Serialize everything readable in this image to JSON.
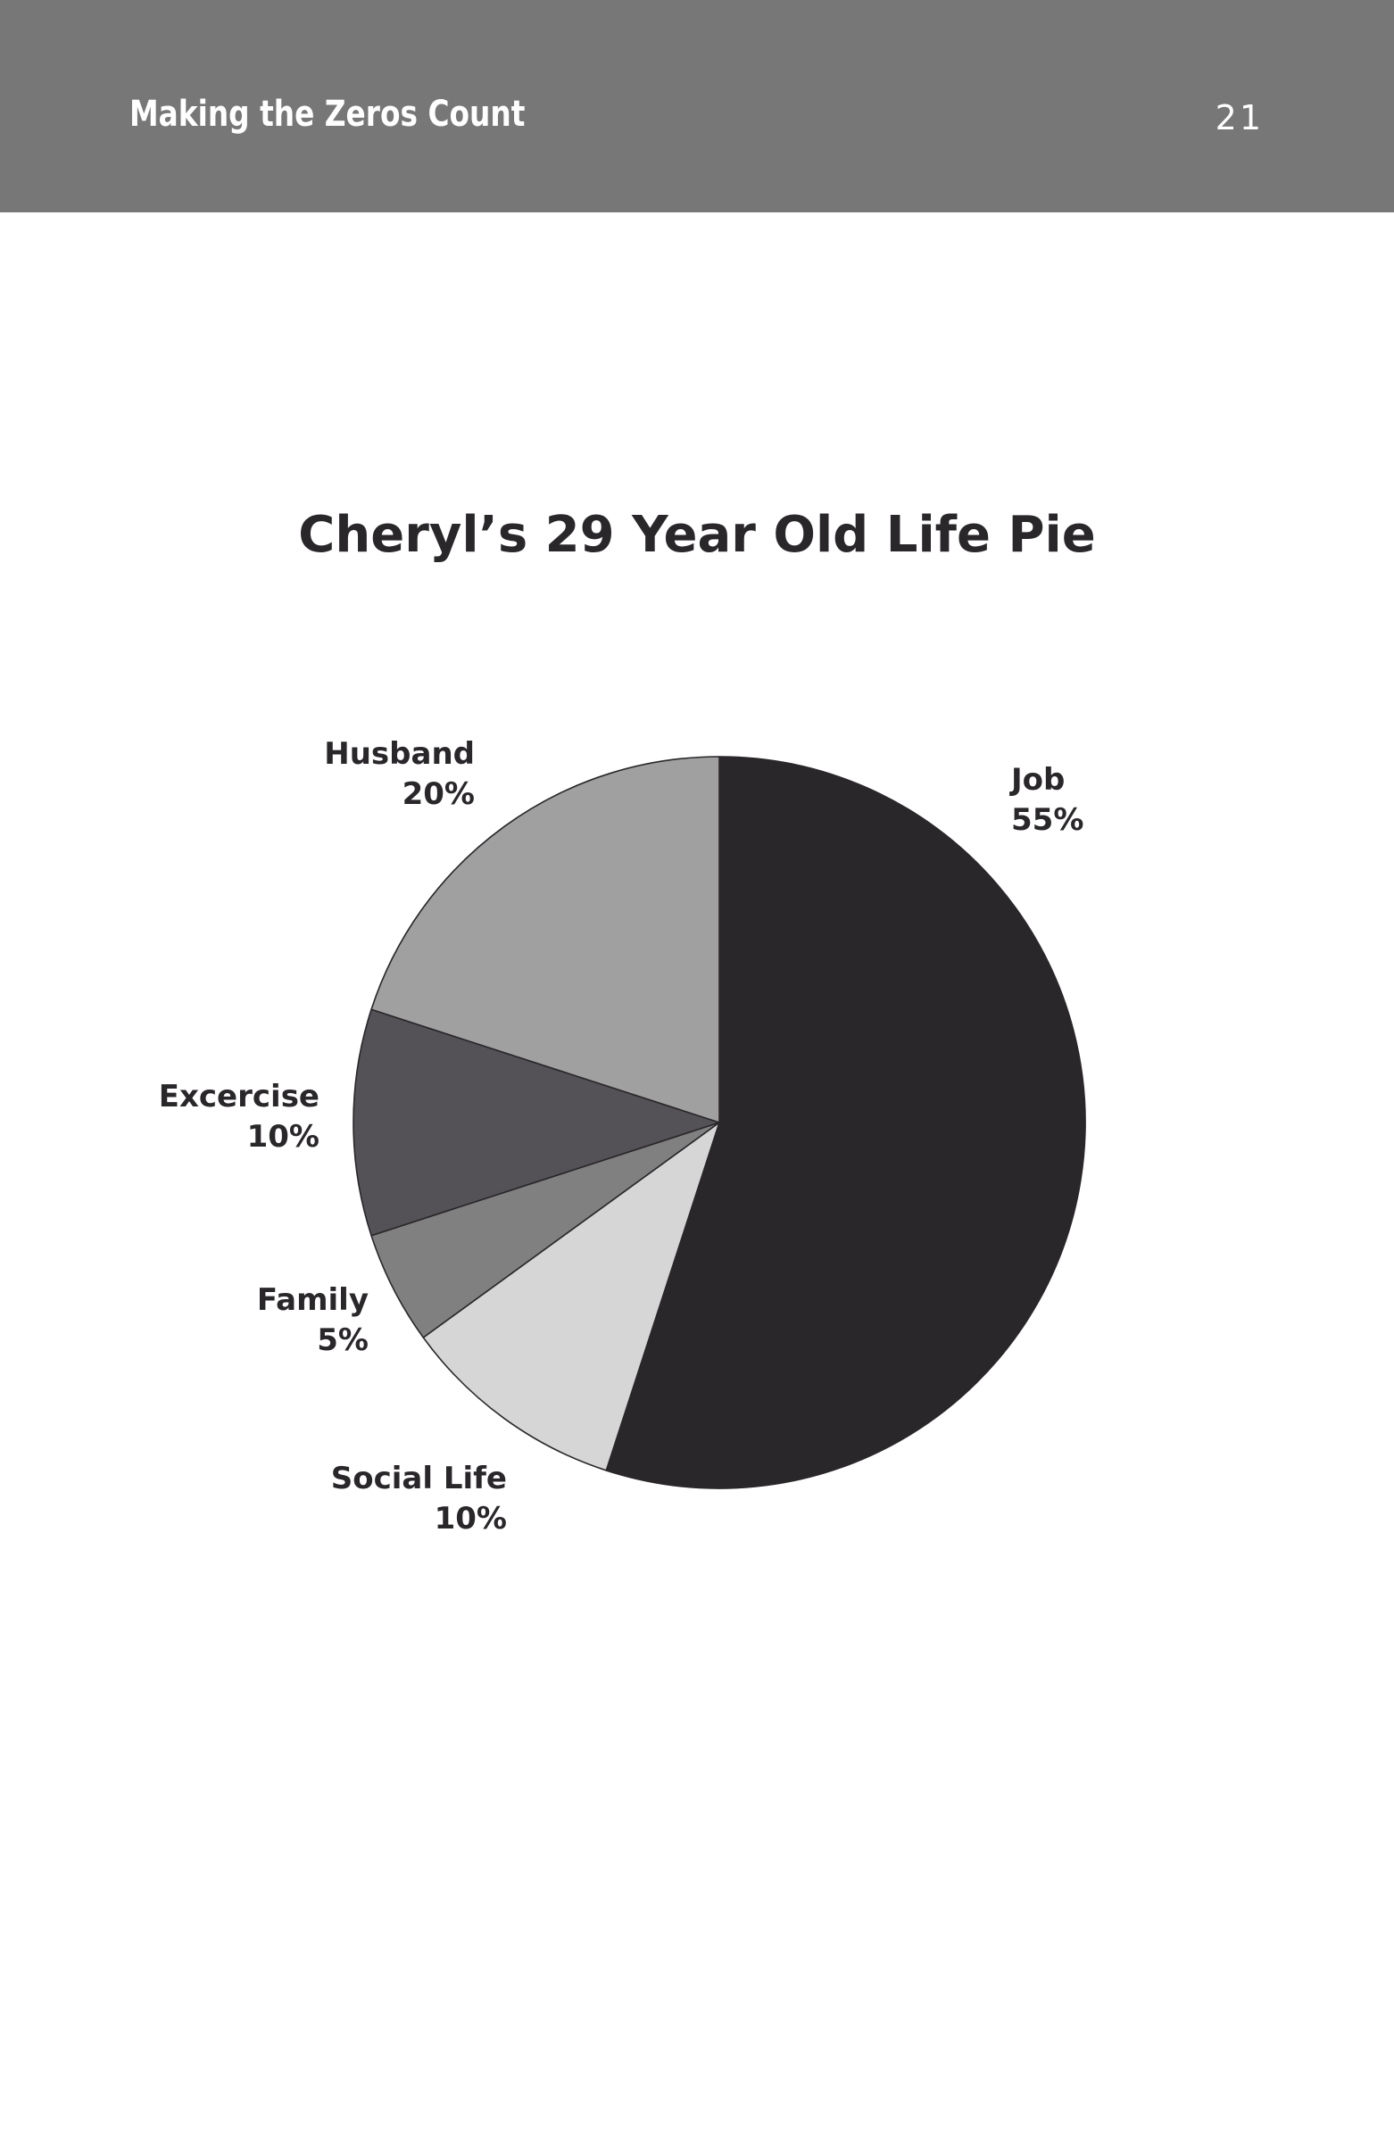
{
  "header": {
    "running_head": "Making the Zeros Count",
    "page_number": "21"
  },
  "chart_data": {
    "type": "pie",
    "title": "Cheryl’s 29 Year Old Life Pie",
    "unit": "%",
    "slices": [
      {
        "name": "Job",
        "value": 55,
        "value_label": "55%",
        "color": "#2a272b"
      },
      {
        "name": "Social Life",
        "value": 10,
        "value_label": "10%",
        "color": "#d6d6d6"
      },
      {
        "name": "Family",
        "value": 5,
        "value_label": "5%",
        "color": "#808080"
      },
      {
        "name": "Excercise",
        "value": 10,
        "value_label": "10%",
        "color": "#545256"
      },
      {
        "name": "Husband",
        "value": 20,
        "value_label": "20%",
        "color": "#a0a0a0"
      }
    ],
    "start_angle_deg": 0,
    "direction": "clockwise",
    "labels": "outside"
  }
}
